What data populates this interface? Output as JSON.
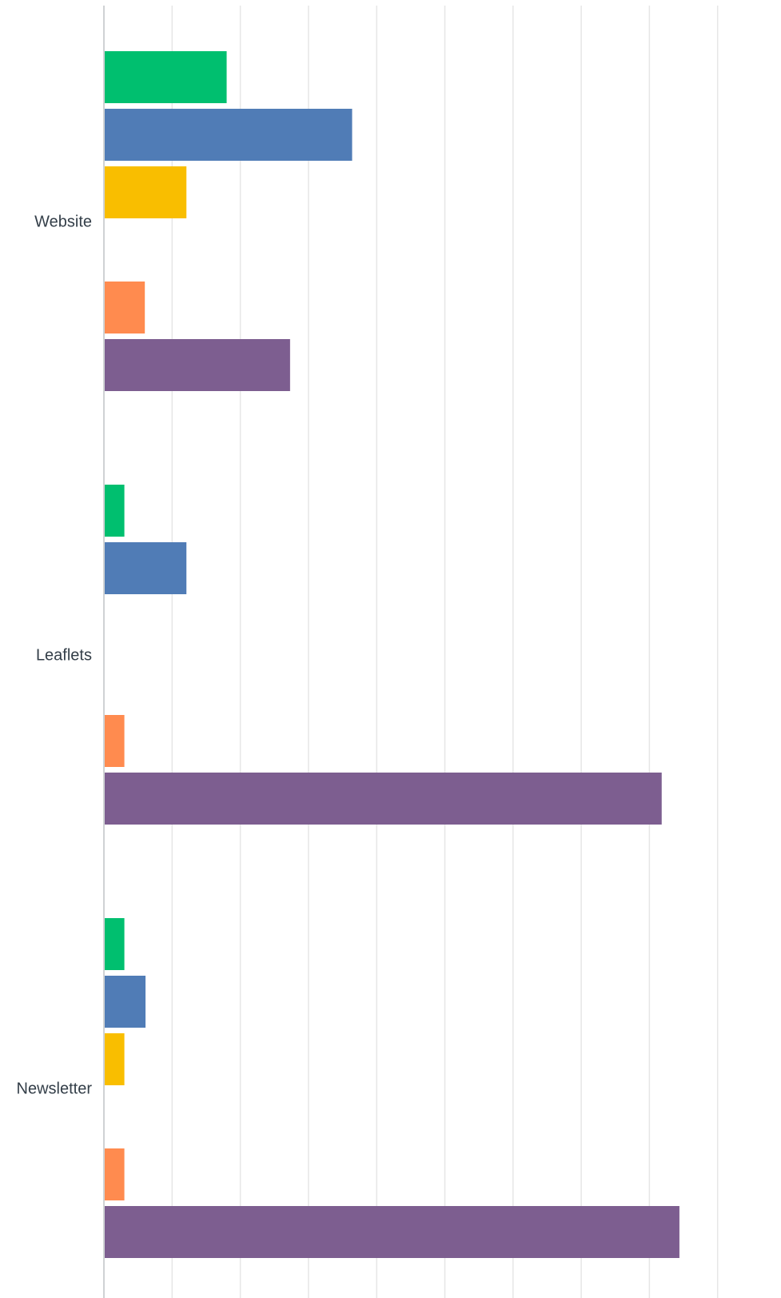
{
  "chart_data": {
    "type": "bar",
    "orientation": "horizontal",
    "categories": [
      "Website",
      "Leaflets",
      "Newsletter"
    ],
    "series": [
      {
        "color": "#00bf6f",
        "values": [
          18,
          3,
          3
        ]
      },
      {
        "color": "#507cb6",
        "values": [
          36.4,
          12.1,
          6.1
        ]
      },
      {
        "color": "#f9be00",
        "values": [
          12.1,
          0,
          3
        ]
      },
      {
        "color": "#6bc8cd",
        "values": [
          0,
          0,
          0
        ]
      },
      {
        "color": "#ff8b4f",
        "values": [
          6,
          3,
          3
        ]
      },
      {
        "color": "#7d5e90",
        "values": [
          27.3,
          81.8,
          84.4
        ]
      }
    ],
    "xlim": [
      0,
      90
    ],
    "grid": true,
    "legend": "none"
  }
}
